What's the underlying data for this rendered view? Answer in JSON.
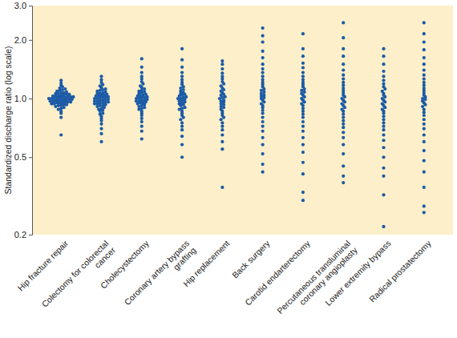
{
  "chart_data": {
    "type": "dot",
    "ylabel": "Standardized discharge ratio (log scale)",
    "log": "y",
    "grid": false,
    "color": "#1a5aa6",
    "categories": [
      "Hip fracture repair",
      "Colectomy for colorectal\ncancer",
      "Cholecystectomy",
      "Coronary artery bypass\ngrafting",
      "Hip replacement",
      "Back surgery",
      "Carotid endarterectomy",
      "Percutaneous transluminal\ncoronary angioplasty",
      "Lower extremity bypass",
      "Radical prostatectomy"
    ],
    "values": [
      [
        0.65,
        0.8,
        0.84,
        0.86,
        0.88,
        0.89,
        0.9,
        0.91,
        0.92,
        0.92,
        0.93,
        0.93,
        0.94,
        0.94,
        0.95,
        0.95,
        0.95,
        0.96,
        0.96,
        0.96,
        0.97,
        0.97,
        0.97,
        0.98,
        0.98,
        0.98,
        0.99,
        0.99,
        0.99,
        1.0,
        1.0,
        1.0,
        1.0,
        1.01,
        1.01,
        1.01,
        1.02,
        1.02,
        1.02,
        1.03,
        1.03,
        1.03,
        1.04,
        1.04,
        1.05,
        1.05,
        1.06,
        1.06,
        1.07,
        1.07,
        1.08,
        1.09,
        1.1,
        1.11,
        1.12,
        1.13,
        1.15,
        1.17,
        1.2,
        1.24
      ],
      [
        0.6,
        0.66,
        0.7,
        0.74,
        0.77,
        0.79,
        0.81,
        0.83,
        0.84,
        0.86,
        0.87,
        0.88,
        0.89,
        0.9,
        0.91,
        0.92,
        0.92,
        0.93,
        0.94,
        0.94,
        0.95,
        0.95,
        0.96,
        0.96,
        0.97,
        0.97,
        0.98,
        0.98,
        0.99,
        0.99,
        1.0,
        1.0,
        1.01,
        1.01,
        1.02,
        1.02,
        1.03,
        1.03,
        1.04,
        1.04,
        1.05,
        1.06,
        1.06,
        1.07,
        1.08,
        1.09,
        1.1,
        1.11,
        1.12,
        1.14,
        1.16,
        1.18,
        1.21,
        1.25,
        1.3
      ],
      [
        0.62,
        0.68,
        0.72,
        0.76,
        0.79,
        0.82,
        0.84,
        0.86,
        0.88,
        0.89,
        0.9,
        0.91,
        0.92,
        0.93,
        0.94,
        0.95,
        0.95,
        0.96,
        0.97,
        0.97,
        0.98,
        0.98,
        0.99,
        1.0,
        1.0,
        1.01,
        1.01,
        1.02,
        1.03,
        1.03,
        1.04,
        1.05,
        1.06,
        1.07,
        1.08,
        1.09,
        1.1,
        1.12,
        1.14,
        1.16,
        1.19,
        1.22,
        1.26,
        1.3,
        1.36,
        1.45,
        1.6
      ],
      [
        0.5,
        0.58,
        0.64,
        0.69,
        0.72,
        0.75,
        0.78,
        0.8,
        0.82,
        0.84,
        0.86,
        0.88,
        0.89,
        0.9,
        0.92,
        0.93,
        0.94,
        0.95,
        0.96,
        0.97,
        0.98,
        0.99,
        1.0,
        1.0,
        1.01,
        1.02,
        1.03,
        1.04,
        1.05,
        1.06,
        1.07,
        1.09,
        1.11,
        1.13,
        1.15,
        1.18,
        1.21,
        1.25,
        1.3,
        1.36,
        1.45,
        1.58,
        1.8
      ],
      [
        0.35,
        0.55,
        0.6,
        0.65,
        0.69,
        0.72,
        0.75,
        0.78,
        0.8,
        0.82,
        0.84,
        0.86,
        0.88,
        0.9,
        0.91,
        0.93,
        0.94,
        0.96,
        0.97,
        0.98,
        1.0,
        1.01,
        1.02,
        1.04,
        1.05,
        1.07,
        1.09,
        1.11,
        1.13,
        1.16,
        1.19,
        1.22,
        1.26,
        1.3,
        1.35,
        1.42,
        1.5,
        1.56
      ],
      [
        0.42,
        0.46,
        0.52,
        0.58,
        0.63,
        0.68,
        0.72,
        0.76,
        0.8,
        0.84,
        0.87,
        0.9,
        0.92,
        0.94,
        0.96,
        0.98,
        1.0,
        1.01,
        1.03,
        1.04,
        1.06,
        1.08,
        1.1,
        1.12,
        1.15,
        1.18,
        1.21,
        1.25,
        1.3,
        1.36,
        1.42,
        1.5,
        1.62,
        1.75,
        1.95,
        2.1,
        2.3
      ],
      [
        0.3,
        0.33,
        0.41,
        0.47,
        0.53,
        0.58,
        0.63,
        0.68,
        0.72,
        0.76,
        0.8,
        0.83,
        0.86,
        0.89,
        0.92,
        0.94,
        0.96,
        0.98,
        1.0,
        1.02,
        1.04,
        1.06,
        1.08,
        1.1,
        1.12,
        1.15,
        1.18,
        1.21,
        1.25,
        1.3,
        1.36,
        1.44,
        1.52,
        1.65,
        1.8,
        2.15
      ],
      [
        0.37,
        0.4,
        0.45,
        0.52,
        0.58,
        0.63,
        0.67,
        0.71,
        0.74,
        0.77,
        0.8,
        0.83,
        0.86,
        0.88,
        0.9,
        0.92,
        0.94,
        0.96,
        0.98,
        1.0,
        1.02,
        1.04,
        1.07,
        1.1,
        1.13,
        1.17,
        1.21,
        1.26,
        1.32,
        1.4,
        1.5,
        1.65,
        1.8,
        2.05,
        2.45
      ],
      [
        0.22,
        0.32,
        0.4,
        0.44,
        0.5,
        0.56,
        0.61,
        0.65,
        0.69,
        0.72,
        0.75,
        0.78,
        0.81,
        0.84,
        0.86,
        0.88,
        0.9,
        0.92,
        0.94,
        0.96,
        0.98,
        1.0,
        1.02,
        1.04,
        1.06,
        1.09,
        1.12,
        1.15,
        1.19,
        1.24,
        1.3,
        1.38,
        1.5,
        1.65,
        1.8
      ],
      [
        0.26,
        0.28,
        0.35,
        0.42,
        0.48,
        0.54,
        0.6,
        0.65,
        0.7,
        0.74,
        0.78,
        0.82,
        0.85,
        0.88,
        0.91,
        0.93,
        0.95,
        0.97,
        0.99,
        1.0,
        1.02,
        1.04,
        1.07,
        1.1,
        1.13,
        1.17,
        1.21,
        1.26,
        1.32,
        1.4,
        1.5,
        1.62,
        1.78,
        1.95,
        2.15,
        2.45
      ]
    ],
    "ylim": [
      0.2,
      3.0
    ],
    "yticks": [
      0.2,
      0.5,
      {
        "value": 1.0,
        "label": "1.0"
      },
      {
        "value": 2.0,
        "label": "2.0"
      },
      {
        "value": 3.0,
        "label": "3.0"
      }
    ]
  }
}
